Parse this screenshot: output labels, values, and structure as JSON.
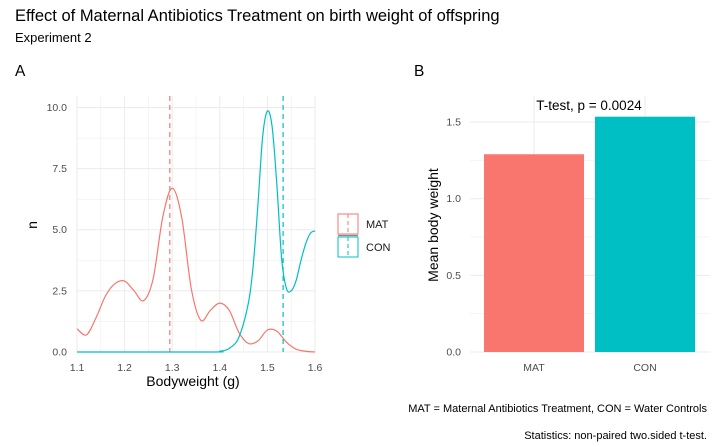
{
  "title": "Effect of Maternal Antibiotics Treatment on birth weight of offspring",
  "subtitle": "Experiment 2",
  "caption_line1": "MAT = Maternal Antibiotics Treatment, CON = Water Controls",
  "caption_line2": "Statistics: non-paired two.sided t-test.",
  "colors": {
    "MAT": "#F8766D",
    "CON": "#00BFC4",
    "grid": "#ebebeb"
  },
  "chart_data": [
    {
      "tag": "A",
      "type": "line",
      "xlabel": "Bodyweight (g)",
      "ylabel": "n",
      "xlim": [
        1.1,
        1.6
      ],
      "ylim": [
        0,
        10
      ],
      "x_ticks": [
        "1.1",
        "1.2",
        "1.3",
        "1.4",
        "1.5",
        "1.6"
      ],
      "y_ticks": [
        "0.0",
        "2.5",
        "5.0",
        "7.5",
        "10.0"
      ],
      "grid": true,
      "legend": {
        "position": "right",
        "entries": [
          "MAT",
          "CON"
        ]
      },
      "series": [
        {
          "name": "MAT",
          "mean": 1.295,
          "x": [
            1.1,
            1.12,
            1.14,
            1.16,
            1.18,
            1.2,
            1.22,
            1.24,
            1.26,
            1.28,
            1.3,
            1.32,
            1.34,
            1.36,
            1.38,
            1.4,
            1.42,
            1.44,
            1.46,
            1.48,
            1.5,
            1.52,
            1.54,
            1.56,
            1.58,
            1.6
          ],
          "y": [
            0.95,
            0.7,
            1.4,
            2.3,
            2.8,
            2.9,
            2.5,
            2.1,
            3.0,
            5.5,
            6.7,
            5.5,
            2.6,
            1.3,
            1.7,
            2.0,
            1.7,
            0.8,
            0.35,
            0.45,
            0.9,
            0.85,
            0.4,
            0.12,
            0.03,
            0.0
          ]
        },
        {
          "name": "CON",
          "mean": 1.533,
          "x": [
            1.1,
            1.38,
            1.4,
            1.42,
            1.44,
            1.46,
            1.47,
            1.48,
            1.49,
            1.5,
            1.51,
            1.52,
            1.53,
            1.54,
            1.55,
            1.56,
            1.57,
            1.58,
            1.59,
            1.6
          ],
          "y": [
            0.0,
            0.0,
            0.03,
            0.15,
            0.6,
            2.0,
            3.5,
            6.0,
            8.8,
            9.85,
            9.2,
            6.8,
            3.8,
            2.6,
            2.5,
            2.9,
            3.7,
            4.4,
            4.85,
            4.95
          ]
        }
      ]
    },
    {
      "tag": "B",
      "type": "bar",
      "ylabel": "Mean body weight",
      "xlabel": "",
      "categories": [
        "MAT",
        "CON"
      ],
      "values": [
        1.29,
        1.535
      ],
      "ylim": [
        0,
        1.6
      ],
      "y_ticks": [
        "0.0",
        "0.5",
        "1.0",
        "1.5"
      ],
      "grid": true,
      "annotation": "T-test, p = 0.0024"
    }
  ]
}
